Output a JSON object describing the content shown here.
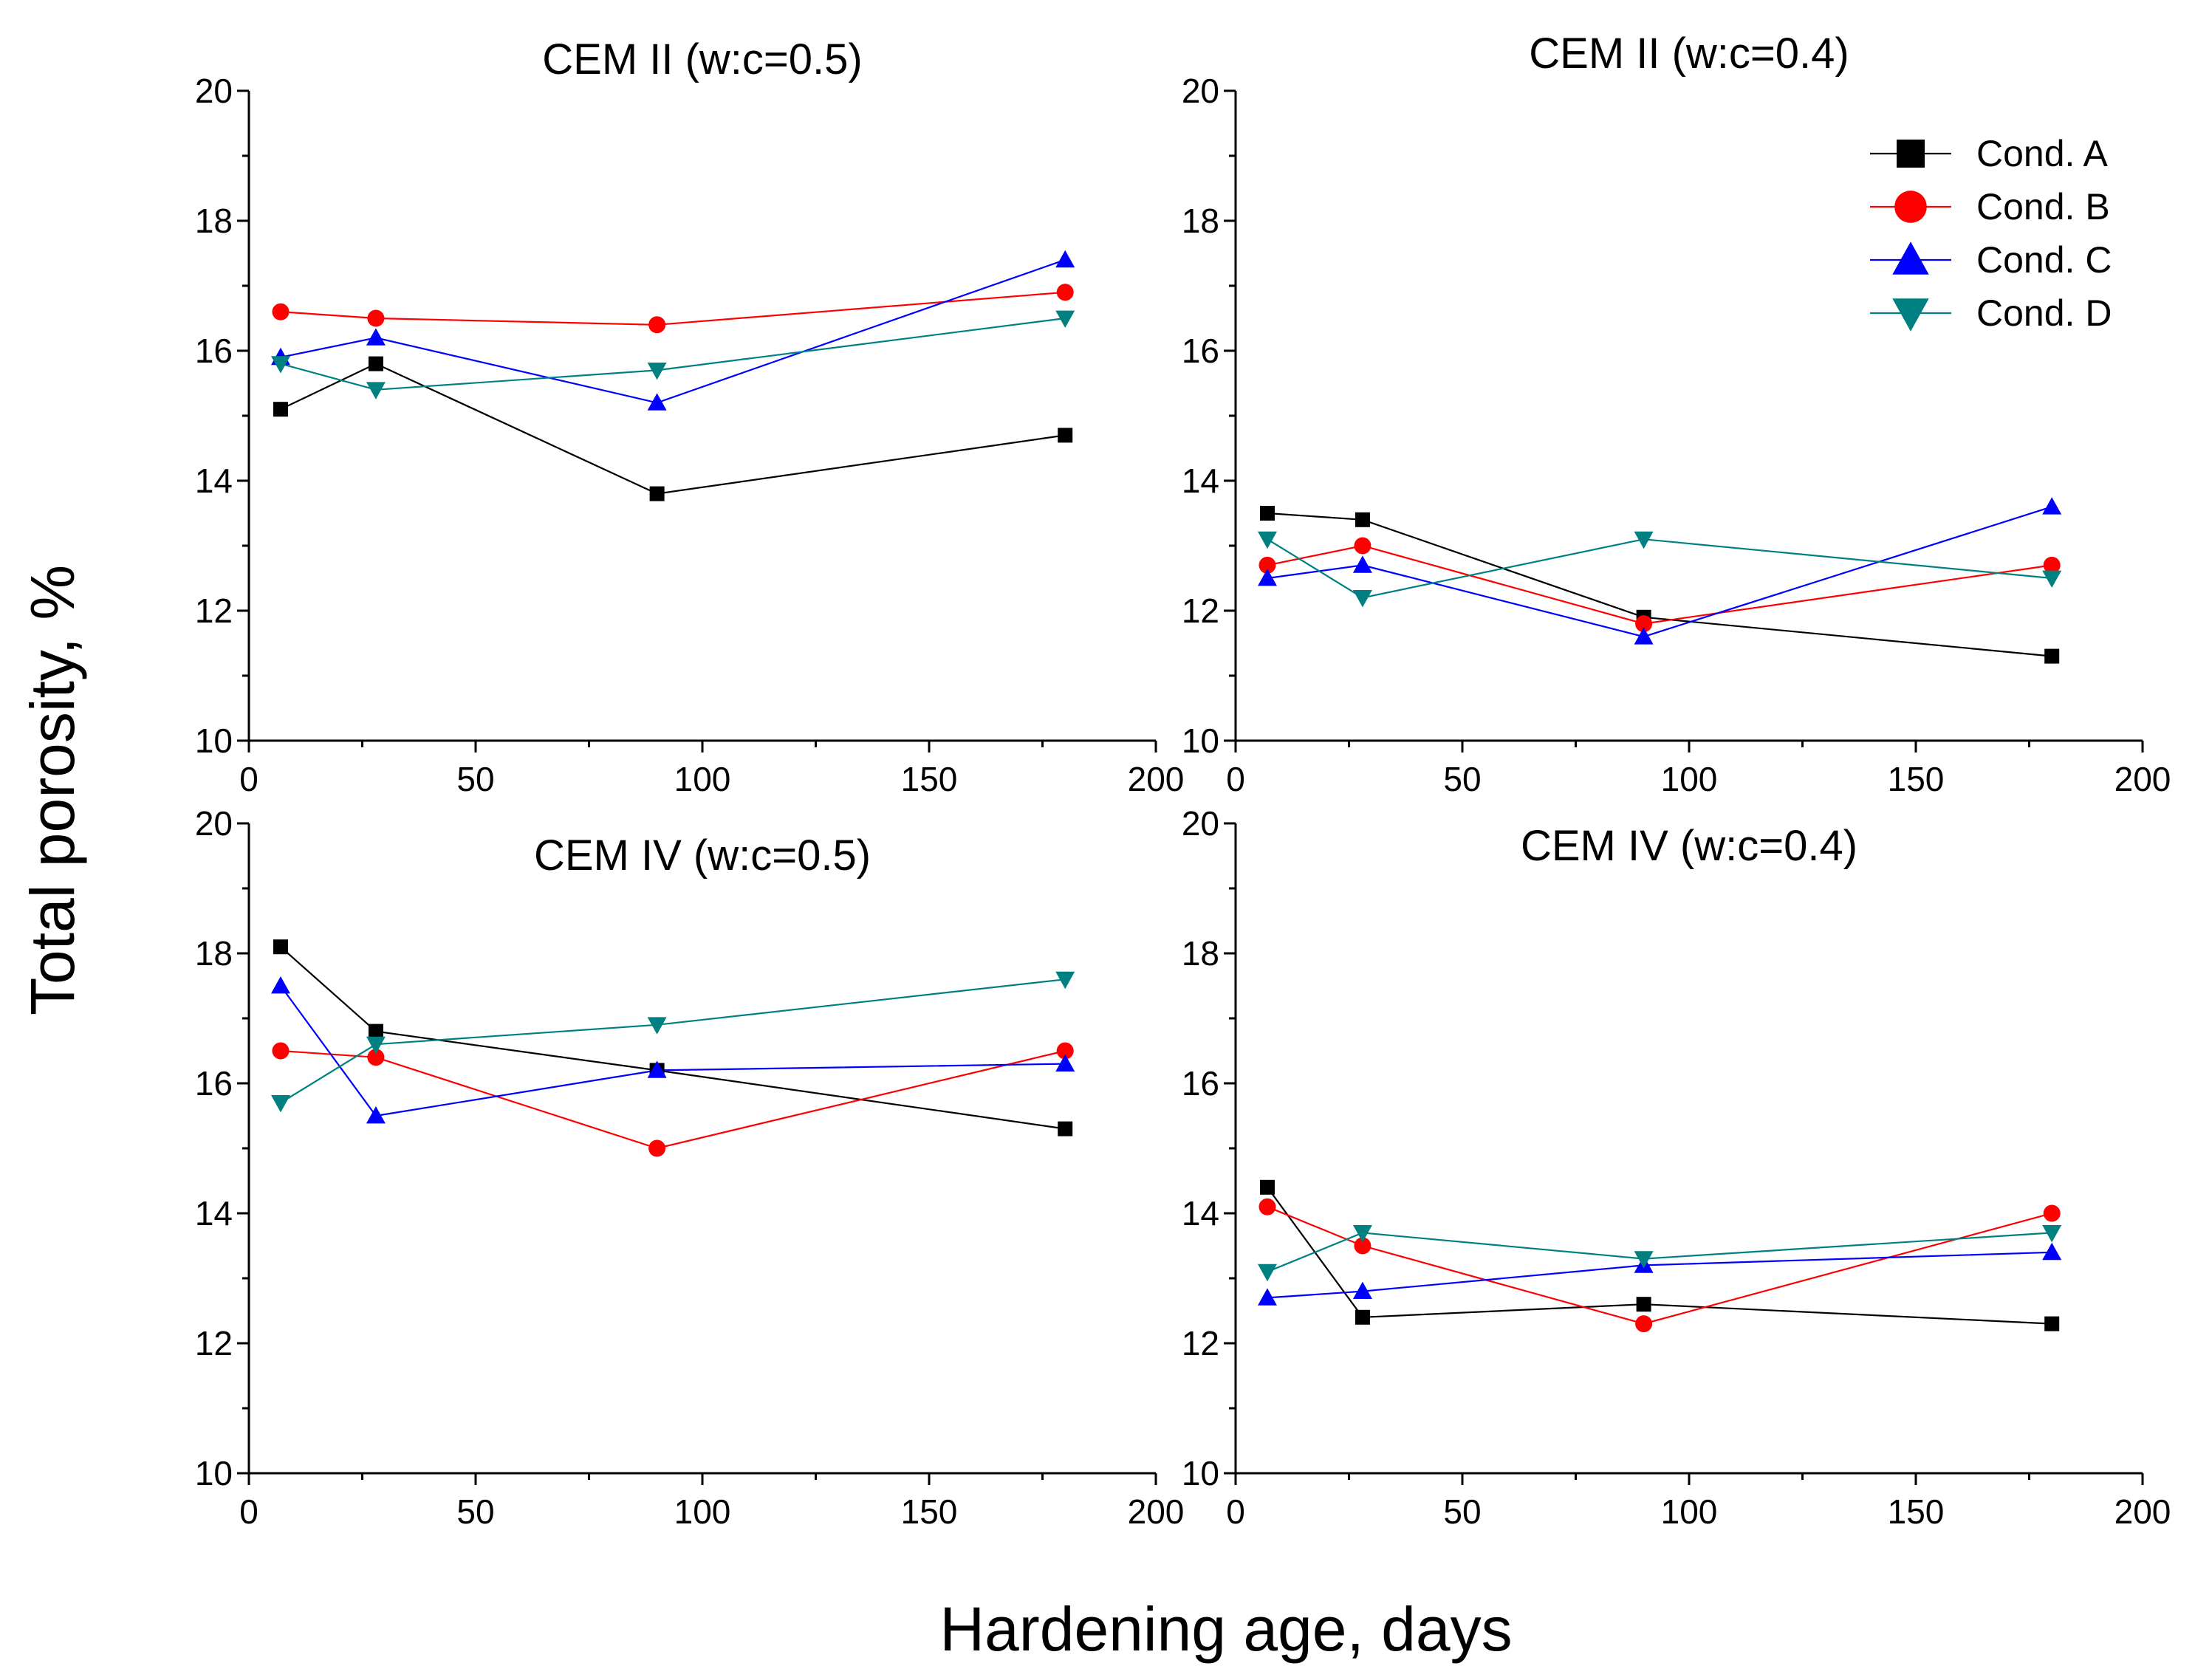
{
  "figure": {
    "ylabel": "Total porosity, %",
    "xlabel": "Hardening age, days"
  },
  "legend": [
    {
      "name": "Cond. A",
      "color": "#000000",
      "marker": "square"
    },
    {
      "name": "Cond. B",
      "color": "#ff0000",
      "marker": "circle"
    },
    {
      "name": "Cond. C",
      "color": "#0000ff",
      "marker": "triangle-up"
    },
    {
      "name": "Cond. D",
      "color": "#008080",
      "marker": "triangle-down"
    }
  ],
  "chart_data": [
    {
      "type": "line",
      "title": "CEM II (w:c=0.5)",
      "x": [
        7,
        28,
        90,
        180
      ],
      "xlim": [
        0,
        200
      ],
      "ylim": [
        10,
        20
      ],
      "xticks": [
        0,
        50,
        100,
        150,
        200
      ],
      "yticks": [
        10,
        12,
        14,
        16,
        18,
        20
      ],
      "series": [
        {
          "name": "Cond. A",
          "values": [
            15.1,
            15.8,
            13.8,
            14.7
          ]
        },
        {
          "name": "Cond. B",
          "values": [
            16.6,
            16.5,
            16.4,
            16.9
          ]
        },
        {
          "name": "Cond. C",
          "values": [
            15.9,
            16.2,
            15.2,
            17.4
          ]
        },
        {
          "name": "Cond. D",
          "values": [
            15.8,
            15.4,
            15.7,
            16.5
          ]
        }
      ]
    },
    {
      "type": "line",
      "title": "CEM II (w:c=0.4)",
      "x": [
        7,
        28,
        90,
        180
      ],
      "xlim": [
        0,
        200
      ],
      "ylim": [
        10,
        20
      ],
      "xticks": [
        0,
        50,
        100,
        150,
        200
      ],
      "yticks": [
        10,
        12,
        14,
        16,
        18,
        20
      ],
      "series": [
        {
          "name": "Cond. A",
          "values": [
            13.5,
            13.4,
            11.9,
            11.3
          ]
        },
        {
          "name": "Cond. B",
          "values": [
            12.7,
            13.0,
            11.8,
            12.7
          ]
        },
        {
          "name": "Cond. C",
          "values": [
            12.5,
            12.7,
            11.6,
            13.6
          ]
        },
        {
          "name": "Cond. D",
          "values": [
            13.1,
            12.2,
            13.1,
            12.5
          ]
        }
      ]
    },
    {
      "type": "line",
      "title": "CEM IV (w:c=0.5)",
      "x": [
        7,
        28,
        90,
        180
      ],
      "xlim": [
        0,
        200
      ],
      "ylim": [
        10,
        20
      ],
      "xticks": [
        0,
        50,
        100,
        150,
        200
      ],
      "yticks": [
        10,
        12,
        14,
        16,
        18,
        20
      ],
      "series": [
        {
          "name": "Cond. A",
          "values": [
            18.1,
            16.8,
            16.2,
            15.3
          ]
        },
        {
          "name": "Cond. B",
          "values": [
            16.5,
            16.4,
            15.0,
            16.5
          ]
        },
        {
          "name": "Cond. C",
          "values": [
            17.5,
            15.5,
            16.2,
            16.3
          ]
        },
        {
          "name": "Cond. D",
          "values": [
            15.7,
            16.6,
            16.9,
            17.6
          ]
        }
      ]
    },
    {
      "type": "line",
      "title": "CEM IV (w:c=0.4)",
      "x": [
        7,
        28,
        90,
        180
      ],
      "xlim": [
        0,
        200
      ],
      "ylim": [
        10,
        20
      ],
      "xticks": [
        0,
        50,
        100,
        150,
        200
      ],
      "yticks": [
        10,
        12,
        14,
        16,
        18,
        20
      ],
      "series": [
        {
          "name": "Cond. A",
          "values": [
            14.4,
            12.4,
            12.6,
            12.3
          ]
        },
        {
          "name": "Cond. B",
          "values": [
            14.1,
            13.5,
            12.3,
            14.0
          ]
        },
        {
          "name": "Cond. C",
          "values": [
            12.7,
            12.8,
            13.2,
            13.4
          ]
        },
        {
          "name": "Cond. D",
          "values": [
            13.1,
            13.7,
            13.3,
            13.7
          ]
        }
      ]
    }
  ]
}
